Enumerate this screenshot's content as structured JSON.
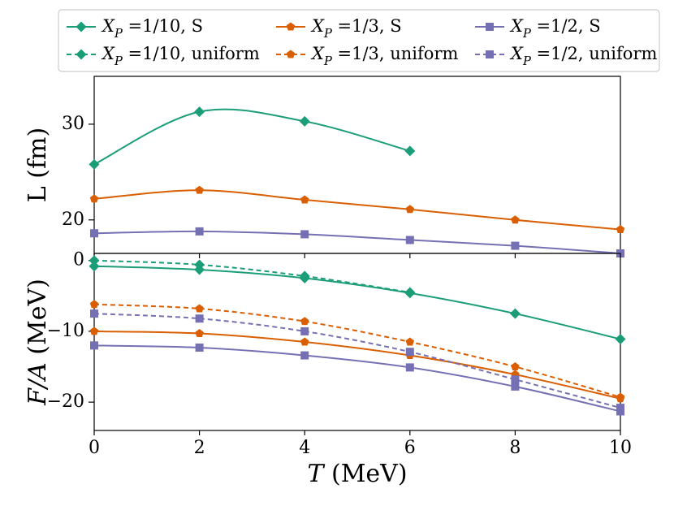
{
  "chart_data": {
    "type": "line",
    "title": "",
    "legend": {
      "placement": "top",
      "columns": 3,
      "entries": [
        {
          "var": "X",
          "sub": "P",
          "rest": " =1/10, S",
          "color": "#1b9e77",
          "marker": "diamond",
          "dashed": false
        },
        {
          "var": "X",
          "sub": "P",
          "rest": " =1/3, S",
          "color": "#d95f02",
          "marker": "pentagon",
          "dashed": false
        },
        {
          "var": "X",
          "sub": "P",
          "rest": " =1/2, S",
          "color": "#7570b3",
          "marker": "square",
          "dashed": false
        },
        {
          "var": "X",
          "sub": "P",
          "rest": " =1/10, uniform",
          "color": "#1b9e77",
          "marker": "diamond",
          "dashed": true
        },
        {
          "var": "X",
          "sub": "P",
          "rest": " =1/3, uniform",
          "color": "#d95f02",
          "marker": "pentagon",
          "dashed": true
        },
        {
          "var": "X",
          "sub": "P",
          "rest": " =1/2, uniform",
          "color": "#7570b3",
          "marker": "square",
          "dashed": true
        }
      ]
    },
    "xaxis": {
      "label_var": "T",
      "label_unit": " (MeV)",
      "xlim": [
        0,
        10
      ],
      "ticks": [
        0,
        2,
        4,
        6,
        8,
        10
      ]
    },
    "panels": [
      {
        "id": "L",
        "ylabel": "L (fm)",
        "ylim": [
          16.5,
          35
        ],
        "yticks": [
          20,
          30
        ],
        "series": [
          {
            "name": "X_P =1/10, S",
            "color": "#1b9e77",
            "marker": "diamond",
            "dashed": false,
            "x": [
              0,
              2,
              4,
              6
            ],
            "y": [
              25.8,
              31.3,
              30.3,
              27.2
            ]
          },
          {
            "name": "X_P =1/3, S",
            "color": "#d95f02",
            "marker": "pentagon",
            "dashed": false,
            "x": [
              0,
              2,
              4,
              6,
              8,
              10
            ],
            "y": [
              22.2,
              23.1,
              22.1,
              21.1,
              20.0,
              19.0
            ]
          },
          {
            "name": "X_P =1/2, S",
            "color": "#7570b3",
            "marker": "square",
            "dashed": false,
            "x": [
              0,
              2,
              4,
              6,
              8,
              10
            ],
            "y": [
              18.6,
              18.8,
              18.5,
              17.9,
              17.3,
              16.5
            ]
          }
        ]
      },
      {
        "id": "F",
        "ylabel_var": "F/A",
        "ylabel_unit": " (MeV)",
        "ylim": [
          -24,
          1
        ],
        "yticks": [
          0,
          -10,
          -20
        ],
        "series": [
          {
            "name": "X_P =1/10, S",
            "color": "#1b9e77",
            "marker": "diamond",
            "dashed": false,
            "x": [
              0,
              2,
              4,
              6,
              8,
              10
            ],
            "y": [
              -0.8,
              -1.3,
              -2.5,
              -4.6,
              -7.5,
              -11.1
            ]
          },
          {
            "name": "X_P =1/3, S",
            "color": "#d95f02",
            "marker": "pentagon",
            "dashed": false,
            "x": [
              0,
              2,
              4,
              6,
              8,
              10
            ],
            "y": [
              -10.0,
              -10.3,
              -11.5,
              -13.4,
              -16.1,
              -19.5
            ]
          },
          {
            "name": "X_P =1/2, S",
            "color": "#7570b3",
            "marker": "square",
            "dashed": false,
            "x": [
              0,
              2,
              4,
              6,
              8,
              10
            ],
            "y": [
              -12.0,
              -12.3,
              -13.4,
              -15.1,
              -17.8,
              -21.3
            ]
          },
          {
            "name": "X_P =1/10, uniform",
            "color": "#1b9e77",
            "marker": "diamond",
            "dashed": true,
            "x": [
              0,
              2,
              4,
              6
            ],
            "y": [
              0.0,
              -0.6,
              -2.2,
              -4.5
            ]
          },
          {
            "name": "X_P =1/3, uniform",
            "color": "#d95f02",
            "marker": "pentagon",
            "dashed": true,
            "x": [
              0,
              2,
              4,
              6,
              8,
              10
            ],
            "y": [
              -6.2,
              -6.8,
              -8.6,
              -11.5,
              -15.0,
              -19.3
            ]
          },
          {
            "name": "X_P =1/2, uniform",
            "color": "#7570b3",
            "marker": "square",
            "dashed": true,
            "x": [
              0,
              2,
              4,
              6,
              8,
              10
            ],
            "y": [
              -7.5,
              -8.2,
              -10.0,
              -12.9,
              -16.8,
              -20.8
            ]
          }
        ]
      }
    ]
  }
}
